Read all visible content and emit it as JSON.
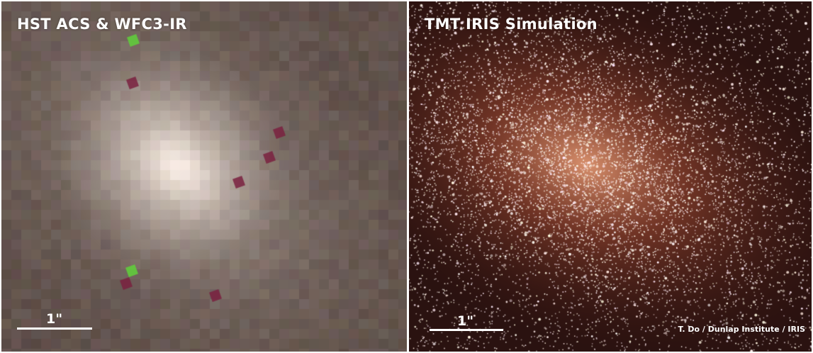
{
  "panels": {
    "left": {
      "title": "HST ACS & WFC3-IR",
      "scale_label": "1\""
    },
    "right": {
      "title": "TMT IRIS Simulation",
      "scale_label": "1\"",
      "credit": "T. Do / Dunlap Institute / IRIS"
    }
  },
  "colors": {
    "left_background": "#5e4f49",
    "left_core": "#f3e6dc",
    "right_background": "#2a1210",
    "right_core": "#e79a73",
    "stars": "#ffffff",
    "hot_pixel_green": "#5fd13a",
    "hot_pixel_magenta": "#7a2140",
    "text": "#ffffff"
  }
}
